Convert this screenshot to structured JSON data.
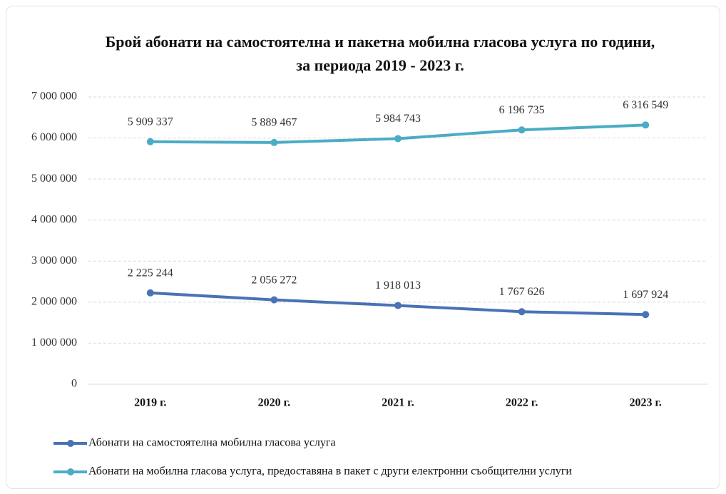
{
  "chart_data": {
    "type": "line",
    "title": "Брой абонати на самостоятелна и пакетна мобилна гласова услуга по години, за периода 2019 - 2023 г.",
    "categories": [
      "2019 г.",
      "2020 г.",
      "2021 г.",
      "2022 г.",
      "2023 г."
    ],
    "series": [
      {
        "name": "Абонати на самостоятелна мобилна гласова услуга",
        "color": "#4a72b5",
        "values": [
          2225244,
          2056272,
          1918013,
          1767626,
          1697924
        ],
        "value_labels": [
          "2 225 244",
          "2 056 272",
          "1 918 013",
          "1 767 626",
          "1 697 924"
        ]
      },
      {
        "name": "Абонати на мобилна гласова услуга, предоставяна в пакет с други електронни съобщителни услуги",
        "color": "#4bacc6",
        "values": [
          5909337,
          5889467,
          5984743,
          6196735,
          6316549
        ],
        "value_labels": [
          "5 909 337",
          "5 889 467",
          "5 984 743",
          "6 196 735",
          "6 316 549"
        ]
      }
    ],
    "ylim": [
      0,
      7000000
    ],
    "yticks": [
      0,
      {
        "value": 1000000,
        "label": "1 000 000"
      },
      {
        "value": 2000000,
        "label": "2 000 000"
      },
      {
        "value": 3000000,
        "label": "3 000 000"
      },
      {
        "value": 4000000,
        "label": "4 000 000"
      },
      {
        "value": 5000000,
        "label": "5 000 000"
      },
      {
        "value": 6000000,
        "label": "6 000 000"
      },
      {
        "value": 7000000,
        "label": "7 000 000"
      }
    ],
    "grid": true,
    "legend": "bottom"
  }
}
